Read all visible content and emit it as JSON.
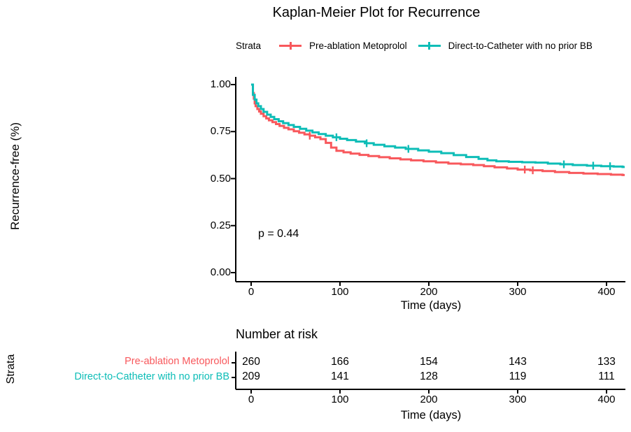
{
  "title": "Kaplan-Meier Plot for Recurrence",
  "legend": {
    "strata_label": "Strata",
    "items": [
      {
        "name": "Pre-ablation Metoprolol"
      },
      {
        "name": "Direct-to-Catheter with no prior BB"
      }
    ]
  },
  "plot": {
    "y_label": "Recurrence-free (%)",
    "x_label": "Time (days)",
    "p_value_text": "p = 0.44"
  },
  "chart_data": {
    "type": "line",
    "subtype": "kaplan-meier-step-survival",
    "title": "Kaplan-Meier Plot for Recurrence",
    "xlabel": "Time (days)",
    "ylabel": "Recurrence-free (%)",
    "xlim": [
      0,
      420
    ],
    "ylim": [
      0.0,
      1.0
    ],
    "x_ticks": [
      0,
      100,
      200,
      300,
      400
    ],
    "y_ticks": [
      0.0,
      0.25,
      0.5,
      0.75,
      1.0
    ],
    "y_tick_labels": [
      "0.00",
      "0.25",
      "0.50",
      "0.75",
      "1.00"
    ],
    "grid": false,
    "legend_position": "top",
    "annotations": [
      {
        "text": "p = 0.44",
        "x": 30,
        "y": 0.2
      }
    ],
    "series": [
      {
        "name": "Pre-ablation Metoprolol",
        "color": "#F8585C",
        "steps": [
          [
            0,
            1.0
          ],
          [
            2,
            0.955
          ],
          [
            3,
            0.925
          ],
          [
            4,
            0.9
          ],
          [
            5,
            0.885
          ],
          [
            7,
            0.87
          ],
          [
            9,
            0.857
          ],
          [
            11,
            0.845
          ],
          [
            14,
            0.832
          ],
          [
            17,
            0.82
          ],
          [
            20,
            0.81
          ],
          [
            24,
            0.8
          ],
          [
            28,
            0.79
          ],
          [
            32,
            0.78
          ],
          [
            37,
            0.77
          ],
          [
            42,
            0.762
          ],
          [
            48,
            0.752
          ],
          [
            54,
            0.744
          ],
          [
            60,
            0.735
          ],
          [
            66,
            0.728
          ],
          [
            72,
            0.72
          ],
          [
            78,
            0.71
          ],
          [
            84,
            0.69
          ],
          [
            90,
            0.665
          ],
          [
            96,
            0.648
          ],
          [
            104,
            0.64
          ],
          [
            112,
            0.633
          ],
          [
            122,
            0.626
          ],
          [
            132,
            0.62
          ],
          [
            144,
            0.614
          ],
          [
            156,
            0.608
          ],
          [
            168,
            0.602
          ],
          [
            180,
            0.597
          ],
          [
            194,
            0.592
          ],
          [
            208,
            0.586
          ],
          [
            222,
            0.58
          ],
          [
            236,
            0.576
          ],
          [
            250,
            0.572
          ],
          [
            262,
            0.566
          ],
          [
            274,
            0.56
          ],
          [
            288,
            0.554
          ],
          [
            300,
            0.548
          ],
          [
            314,
            0.544
          ],
          [
            328,
            0.54
          ],
          [
            342,
            0.535
          ],
          [
            358,
            0.53
          ],
          [
            374,
            0.527
          ],
          [
            390,
            0.524
          ],
          [
            405,
            0.521
          ],
          [
            418,
            0.519
          ]
        ],
        "censor_times": [
          66,
          308,
          317
        ]
      },
      {
        "name": "Direct-to-Catheter with no prior BB",
        "color": "#0DBDB7",
        "steps": [
          [
            0,
            1.0
          ],
          [
            2,
            0.945
          ],
          [
            4,
            0.92
          ],
          [
            6,
            0.9
          ],
          [
            8,
            0.885
          ],
          [
            11,
            0.87
          ],
          [
            14,
            0.855
          ],
          [
            18,
            0.84
          ],
          [
            22,
            0.828
          ],
          [
            26,
            0.816
          ],
          [
            31,
            0.805
          ],
          [
            36,
            0.795
          ],
          [
            42,
            0.785
          ],
          [
            48,
            0.775
          ],
          [
            55,
            0.765
          ],
          [
            62,
            0.755
          ],
          [
            69,
            0.746
          ],
          [
            76,
            0.737
          ],
          [
            84,
            0.728
          ],
          [
            92,
            0.72
          ],
          [
            100,
            0.712
          ],
          [
            108,
            0.705
          ],
          [
            118,
            0.697
          ],
          [
            128,
            0.688
          ],
          [
            138,
            0.68
          ],
          [
            150,
            0.672
          ],
          [
            162,
            0.665
          ],
          [
            174,
            0.658
          ],
          [
            188,
            0.65
          ],
          [
            200,
            0.643
          ],
          [
            214,
            0.635
          ],
          [
            228,
            0.625
          ],
          [
            242,
            0.615
          ],
          [
            256,
            0.605
          ],
          [
            266,
            0.597
          ],
          [
            276,
            0.592
          ],
          [
            290,
            0.589
          ],
          [
            305,
            0.587
          ],
          [
            320,
            0.585
          ],
          [
            334,
            0.58
          ],
          [
            348,
            0.576
          ],
          [
            362,
            0.572
          ],
          [
            378,
            0.569
          ],
          [
            394,
            0.566
          ],
          [
            408,
            0.564
          ],
          [
            418,
            0.562
          ]
        ],
        "censor_times": [
          96,
          130,
          177,
          352,
          385,
          404
        ]
      }
    ]
  },
  "risk_table": {
    "heading": "Number at risk",
    "axis_label": "Strata",
    "x_label": "Time (days)",
    "x_ticks": [
      0,
      100,
      200,
      300,
      400
    ],
    "rows": [
      {
        "label": "Pre-ablation Metoprolol",
        "values": [
          260,
          166,
          154,
          143,
          133
        ]
      },
      {
        "label": "Direct-to-Catheter with no prior BB",
        "values": [
          209,
          141,
          128,
          119,
          111
        ]
      }
    ]
  }
}
